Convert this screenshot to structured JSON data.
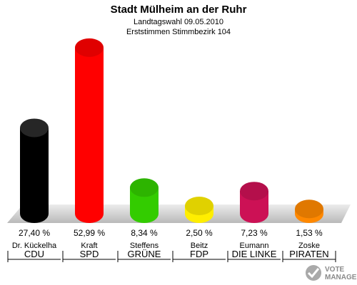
{
  "chart_data": {
    "type": "bar",
    "title": "Stadt Mülheim an der Ruhr",
    "subtitle_1": "Landtagswahl 09.05.2010",
    "subtitle_2": "Erststimmen Stimmbezirk 104",
    "ylim": [
      0,
      55
    ],
    "categories": [
      "CDU",
      "SPD",
      "GRÜNE",
      "FDP",
      "DIE LINKE",
      "PIRATEN"
    ],
    "candidates": [
      "Dr. Kückelha",
      "Kraft",
      "Steffens",
      "Beitz",
      "Eumann",
      "Zoske"
    ],
    "values": [
      27.4,
      52.99,
      8.34,
      2.5,
      7.23,
      1.53
    ],
    "value_labels": [
      "27,40 %",
      "52,99 %",
      "8,34 %",
      "2,50 %",
      "7,23 %",
      "1,53 %"
    ],
    "colors": [
      "#000000",
      "#ff0000",
      "#33cc00",
      "#ffee00",
      "#cc1155",
      "#ff8800"
    ]
  },
  "logo": {
    "line1": "VOTE",
    "line2": "MANAGER"
  }
}
